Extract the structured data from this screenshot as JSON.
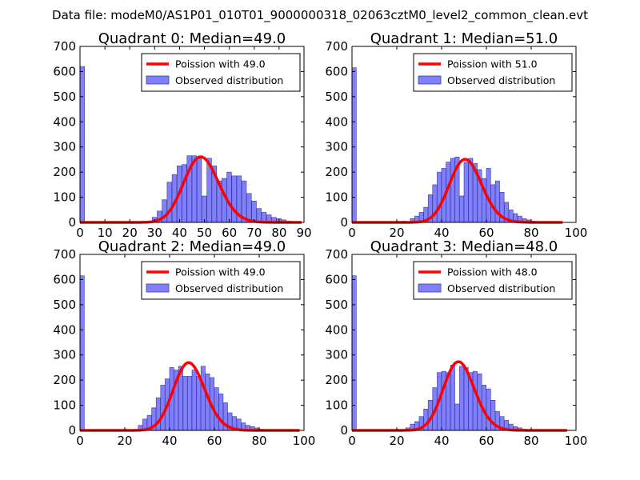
{
  "figure": {
    "suptitle": "Data file: modeM0/AS1P01_010T01_9000000318_02063cztM0_level2_common_clean.evt",
    "colors": {
      "bar_fill": "#8080ff",
      "bar_edge": "#3a3a9a",
      "line": "#ff0000",
      "axes": "#000000"
    }
  },
  "chart_data": [
    {
      "type": "bar",
      "title": "Quadrant 0: Median=49.0",
      "xlim": [
        0,
        90
      ],
      "ylim": [
        0,
        700
      ],
      "xticks": [
        0,
        10,
        20,
        30,
        40,
        50,
        60,
        70,
        80,
        90
      ],
      "yticks": [
        0,
        100,
        200,
        300,
        400,
        500,
        600,
        700
      ],
      "bin_width": 1.85,
      "legend": {
        "line_label": "Poission with 49.0",
        "bar_label": "Observed distribution",
        "placement": "top-right"
      },
      "bars": [
        [
          0,
          620
        ],
        [
          27,
          5
        ],
        [
          29,
          20
        ],
        [
          31,
          45
        ],
        [
          33,
          90
        ],
        [
          35,
          160
        ],
        [
          37,
          190
        ],
        [
          39,
          225
        ],
        [
          41,
          230
        ],
        [
          43,
          265
        ],
        [
          45,
          265
        ],
        [
          47,
          255
        ],
        [
          49,
          105
        ],
        [
          51,
          255
        ],
        [
          53,
          225
        ],
        [
          55,
          165
        ],
        [
          57,
          175
        ],
        [
          59,
          200
        ],
        [
          61,
          185
        ],
        [
          63,
          185
        ],
        [
          65,
          165
        ],
        [
          67,
          115
        ],
        [
          69,
          85
        ],
        [
          71,
          55
        ],
        [
          73,
          40
        ],
        [
          75,
          30
        ],
        [
          77,
          20
        ],
        [
          79,
          15
        ],
        [
          81,
          10
        ],
        [
          83,
          5
        ]
      ],
      "poisson": {
        "mean": 49.0,
        "scale": 4580,
        "x_range": [
          0,
          89
        ]
      }
    },
    {
      "type": "bar",
      "title": "Quadrant 1: Median=51.0",
      "xlim": [
        0,
        100
      ],
      "ylim": [
        0,
        700
      ],
      "xticks": [
        0,
        20,
        40,
        60,
        80,
        100
      ],
      "yticks": [
        0,
        100,
        200,
        300,
        400,
        500,
        600,
        700
      ],
      "bin_width": 1.9,
      "legend": {
        "line_label": "Poission with 51.0",
        "bar_label": "Observed distribution",
        "placement": "top-right"
      },
      "bars": [
        [
          0,
          615
        ],
        [
          22,
          5
        ],
        [
          26,
          15
        ],
        [
          28,
          25
        ],
        [
          30,
          40
        ],
        [
          32,
          60
        ],
        [
          34,
          110
        ],
        [
          36,
          150
        ],
        [
          38,
          200
        ],
        [
          40,
          215
        ],
        [
          42,
          240
        ],
        [
          44,
          255
        ],
        [
          46,
          260
        ],
        [
          48,
          105
        ],
        [
          50,
          240
        ],
        [
          52,
          255
        ],
        [
          54,
          235
        ],
        [
          56,
          210
        ],
        [
          58,
          175
        ],
        [
          60,
          215
        ],
        [
          62,
          150
        ],
        [
          64,
          165
        ],
        [
          66,
          120
        ],
        [
          68,
          80
        ],
        [
          70,
          50
        ],
        [
          72,
          35
        ],
        [
          74,
          25
        ],
        [
          76,
          15
        ],
        [
          78,
          10
        ],
        [
          80,
          5
        ]
      ],
      "poisson": {
        "mean": 51.0,
        "scale": 4500,
        "x_range": [
          0,
          94
        ]
      }
    },
    {
      "type": "bar",
      "title": "Quadrant 2: Median=49.0",
      "xlim": [
        0,
        100
      ],
      "ylim": [
        0,
        700
      ],
      "xticks": [
        0,
        20,
        40,
        60,
        80,
        100
      ],
      "yticks": [
        0,
        100,
        200,
        300,
        400,
        500,
        600,
        700
      ],
      "bin_width": 1.9,
      "legend": {
        "line_label": "Poission with 49.0",
        "bar_label": "Observed distribution",
        "placement": "top-right"
      },
      "bars": [
        [
          0,
          615
        ],
        [
          26,
          20
        ],
        [
          28,
          45
        ],
        [
          30,
          60
        ],
        [
          32,
          90
        ],
        [
          34,
          130
        ],
        [
          36,
          180
        ],
        [
          38,
          205
        ],
        [
          40,
          250
        ],
        [
          42,
          240
        ],
        [
          44,
          255
        ],
        [
          46,
          215
        ],
        [
          48,
          215
        ],
        [
          50,
          240
        ],
        [
          52,
          215
        ],
        [
          54,
          255
        ],
        [
          56,
          225
        ],
        [
          58,
          210
        ],
        [
          60,
          170
        ],
        [
          62,
          145
        ],
        [
          64,
          110
        ],
        [
          66,
          70
        ],
        [
          68,
          55
        ],
        [
          70,
          45
        ],
        [
          72,
          30
        ],
        [
          74,
          20
        ],
        [
          76,
          15
        ],
        [
          78,
          10
        ],
        [
          80,
          5
        ]
      ],
      "poisson": {
        "mean": 49.0,
        "scale": 4730,
        "x_range": [
          0,
          98
        ]
      }
    },
    {
      "type": "bar",
      "title": "Quadrant 3: Median=48.0",
      "xlim": [
        0,
        100
      ],
      "ylim": [
        0,
        700
      ],
      "xticks": [
        0,
        20,
        40,
        60,
        80,
        100
      ],
      "yticks": [
        0,
        100,
        200,
        300,
        400,
        500,
        600,
        700
      ],
      "bin_width": 1.9,
      "legend": {
        "line_label": "Poission with 48.0",
        "bar_label": "Observed distribution",
        "placement": "top-right"
      },
      "bars": [
        [
          0,
          615
        ],
        [
          24,
          10
        ],
        [
          26,
          25
        ],
        [
          28,
          35
        ],
        [
          30,
          55
        ],
        [
          32,
          85
        ],
        [
          34,
          120
        ],
        [
          36,
          170
        ],
        [
          38,
          230
        ],
        [
          40,
          235
        ],
        [
          42,
          230
        ],
        [
          44,
          260
        ],
        [
          46,
          105
        ],
        [
          48,
          255
        ],
        [
          50,
          250
        ],
        [
          52,
          230
        ],
        [
          54,
          235
        ],
        [
          56,
          225
        ],
        [
          58,
          180
        ],
        [
          60,
          165
        ],
        [
          62,
          120
        ],
        [
          64,
          75
        ],
        [
          66,
          55
        ],
        [
          68,
          40
        ],
        [
          70,
          25
        ],
        [
          72,
          15
        ],
        [
          74,
          10
        ],
        [
          76,
          5
        ]
      ],
      "poisson": {
        "mean": 48.0,
        "scale": 4750,
        "x_range": [
          0,
          96
        ]
      }
    }
  ]
}
